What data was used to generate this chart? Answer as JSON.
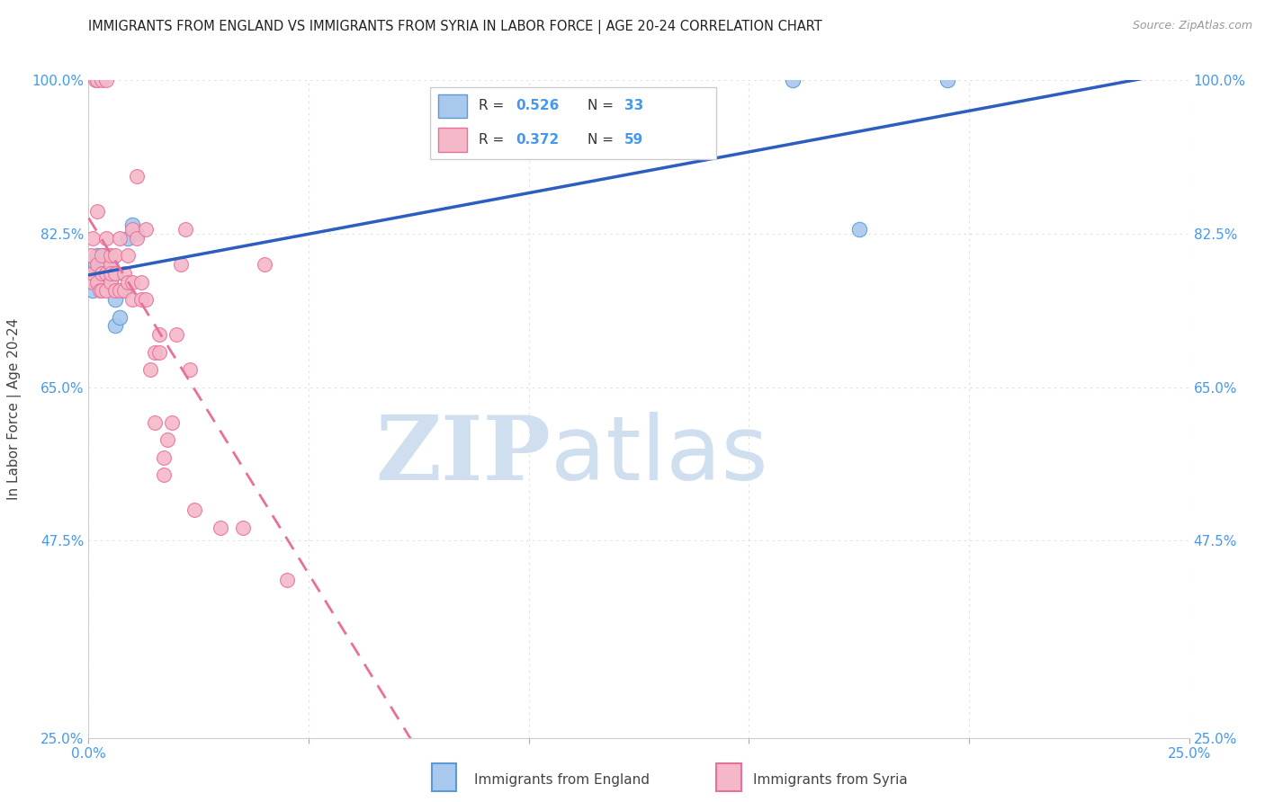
{
  "title": "IMMIGRANTS FROM ENGLAND VS IMMIGRANTS FROM SYRIA IN LABOR FORCE | AGE 20-24 CORRELATION CHART",
  "source": "Source: ZipAtlas.com",
  "ylabel": "In Labor Force | Age 20-24",
  "xlim": [
    0.0,
    0.25
  ],
  "ylim": [
    0.25,
    1.0
  ],
  "xtick_positions": [
    0.0,
    0.05,
    0.1,
    0.15,
    0.2,
    0.25
  ],
  "xtick_labels": [
    "0.0%",
    "",
    "",
    "",
    "",
    "25.0%"
  ],
  "ytick_positions": [
    0.25,
    0.475,
    0.65,
    0.825,
    1.0
  ],
  "ytick_labels": [
    "25.0%",
    "47.5%",
    "65.0%",
    "82.5%",
    "100.0%"
  ],
  "legend_england": "R = 0.526   N = 33",
  "legend_syria": "R = 0.372   N = 59",
  "england_color": "#A8C8EE",
  "england_edge_color": "#5B9BD5",
  "syria_color": "#F4B8C8",
  "syria_edge_color": "#E8709A",
  "england_line_color": "#2B5EBF",
  "syria_line_color": "#E8709A",
  "watermark_zip": "ZIP",
  "watermark_atlas": "atlas",
  "watermark_color": "#D0DFEF",
  "grid_color": "#DDDDDD",
  "england_x": [
    0.0005,
    0.001,
    0.001,
    0.0015,
    0.002,
    0.002,
    0.002,
    0.0025,
    0.003,
    0.003,
    0.003,
    0.003,
    0.003,
    0.0035,
    0.004,
    0.004,
    0.004,
    0.004,
    0.005,
    0.005,
    0.005,
    0.005,
    0.006,
    0.006,
    0.006,
    0.007,
    0.008,
    0.009,
    0.01,
    0.011,
    0.16,
    0.175,
    0.195
  ],
  "england_y": [
    0.775,
    0.78,
    0.76,
    0.79,
    0.8,
    0.785,
    0.77,
    0.78,
    0.785,
    0.775,
    0.79,
    0.8,
    0.785,
    0.775,
    0.79,
    0.785,
    0.795,
    0.8,
    0.77,
    0.775,
    0.78,
    0.79,
    0.72,
    0.75,
    0.78,
    0.73,
    0.76,
    0.82,
    0.835,
    0.825,
    1.0,
    0.83,
    1.0
  ],
  "syria_x": [
    0.0005,
    0.0005,
    0.001,
    0.001,
    0.001,
    0.0015,
    0.002,
    0.002,
    0.002,
    0.002,
    0.0025,
    0.003,
    0.003,
    0.003,
    0.003,
    0.004,
    0.004,
    0.004,
    0.004,
    0.005,
    0.005,
    0.005,
    0.005,
    0.006,
    0.006,
    0.006,
    0.007,
    0.007,
    0.008,
    0.008,
    0.009,
    0.009,
    0.01,
    0.01,
    0.01,
    0.011,
    0.011,
    0.012,
    0.012,
    0.013,
    0.013,
    0.014,
    0.015,
    0.015,
    0.016,
    0.016,
    0.017,
    0.017,
    0.018,
    0.019,
    0.02,
    0.021,
    0.022,
    0.023,
    0.024,
    0.03,
    0.035,
    0.04,
    0.045
  ],
  "syria_y": [
    0.775,
    0.8,
    0.77,
    0.78,
    0.82,
    1.0,
    0.77,
    0.79,
    0.85,
    1.0,
    0.76,
    0.76,
    0.78,
    0.8,
    1.0,
    0.76,
    0.78,
    0.82,
    1.0,
    0.77,
    0.79,
    0.78,
    0.8,
    0.76,
    0.78,
    0.8,
    0.76,
    0.82,
    0.76,
    0.78,
    0.77,
    0.8,
    0.75,
    0.77,
    0.83,
    0.82,
    0.89,
    0.75,
    0.77,
    0.75,
    0.83,
    0.67,
    0.61,
    0.69,
    0.69,
    0.71,
    0.55,
    0.57,
    0.59,
    0.61,
    0.71,
    0.79,
    0.83,
    0.67,
    0.51,
    0.49,
    0.49,
    0.79,
    0.43
  ]
}
